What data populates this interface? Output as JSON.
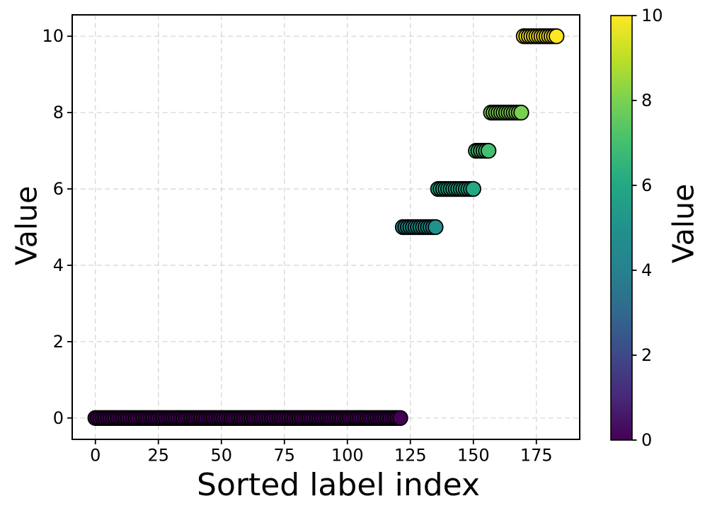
{
  "figure": {
    "background": "#ffffff",
    "text_color": "#000000"
  },
  "chart_data": {
    "type": "scatter",
    "title": "",
    "xlabel": "Sorted label index",
    "ylabel": "Value",
    "x_ticks": [
      0,
      25,
      50,
      75,
      100,
      125,
      150,
      175
    ],
    "y_ticks": [
      0,
      2,
      4,
      6,
      8,
      10
    ],
    "xlim": [
      -9.2,
      192.2
    ],
    "ylim": [
      -0.56,
      10.56
    ],
    "grid": true,
    "grid_style": "dashed",
    "grid_color": "#d6d6d6",
    "spine_color": "#000000",
    "n_points": 184,
    "marker": {
      "radius_px": 10.3,
      "edge_color": "#000000",
      "edge_width": 1.8
    },
    "groups": [
      {
        "value": 0,
        "index_start": 0,
        "index_end": 121,
        "count": 122,
        "color": "#440154"
      },
      {
        "value": 5,
        "index_start": 122,
        "index_end": 135,
        "count": 14,
        "color": "#21918c"
      },
      {
        "value": 6,
        "index_start": 136,
        "index_end": 150,
        "count": 15,
        "color": "#22a884"
      },
      {
        "value": 7,
        "index_start": 151,
        "index_end": 156,
        "count": 6,
        "color": "#44bf70"
      },
      {
        "value": 8,
        "index_start": 157,
        "index_end": 169,
        "count": 13,
        "color": "#7ad151"
      },
      {
        "value": 10,
        "index_start": 170,
        "index_end": 183,
        "count": 14,
        "color": "#fde725"
      }
    ],
    "colorbar": {
      "label": "Value",
      "ticks": [
        0,
        2,
        4,
        6,
        8,
        10
      ],
      "vmin": 0,
      "vmax": 10,
      "colormap": "viridis",
      "gradient_stops": [
        {
          "offset": 0.0,
          "color": "#440154"
        },
        {
          "offset": 0.1,
          "color": "#482878"
        },
        {
          "offset": 0.2,
          "color": "#3e4989"
        },
        {
          "offset": 0.3,
          "color": "#31688e"
        },
        {
          "offset": 0.4,
          "color": "#26828e"
        },
        {
          "offset": 0.5,
          "color": "#21918c"
        },
        {
          "offset": 0.6,
          "color": "#22a884"
        },
        {
          "offset": 0.7,
          "color": "#44bf70"
        },
        {
          "offset": 0.8,
          "color": "#7ad151"
        },
        {
          "offset": 0.9,
          "color": "#bddf26"
        },
        {
          "offset": 1.0,
          "color": "#fde725"
        }
      ]
    }
  }
}
